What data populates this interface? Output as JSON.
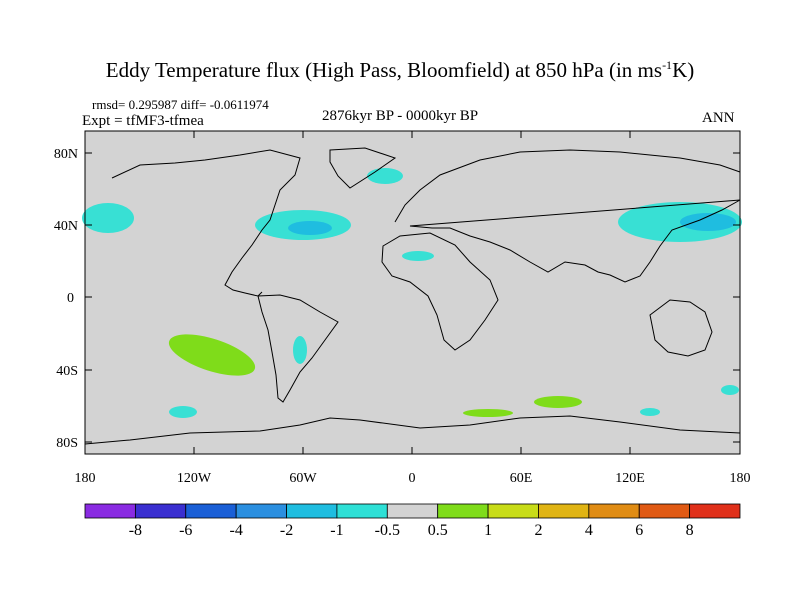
{
  "title_main": "Eddy Temperature flux (High Pass, Bloomfield) at 850 hPa (in ms",
  "title_sup": "-1",
  "title_end": "K)",
  "stats": "rmsd= 0.295987 diff= -0.0611974",
  "experiment": "Expt = tfMF3-tfmea",
  "period": "2876kyr BP - 0000kyr BP",
  "season": "ANN",
  "lat_labels": [
    "80N",
    "40N",
    "0",
    "40S",
    "80S"
  ],
  "lon_labels": [
    "180",
    "120W",
    "60W",
    "0",
    "60E",
    "120E",
    "180"
  ],
  "colorbar": {
    "labels": [
      "-8",
      "-6",
      "-4",
      "-2",
      "-1",
      "-0.5",
      "0.5",
      "1",
      "2",
      "4",
      "6",
      "8"
    ],
    "colors": [
      "#8a2be2",
      "#3a2fd0",
      "#1a5fd6",
      "#2b8fe0",
      "#1fbde0",
      "#2ee0d6",
      "#d3d3d3",
      "#7fdc1a",
      "#c8dc18",
      "#e0b414",
      "#e08c14",
      "#e05a14",
      "#e0301a"
    ]
  },
  "colors": {
    "ocean_land_bg": "#d3d3d3",
    "neg_small": "#38e0d4",
    "neg_mid": "#1fbde0",
    "pos_small": "#7fdc1a"
  }
}
